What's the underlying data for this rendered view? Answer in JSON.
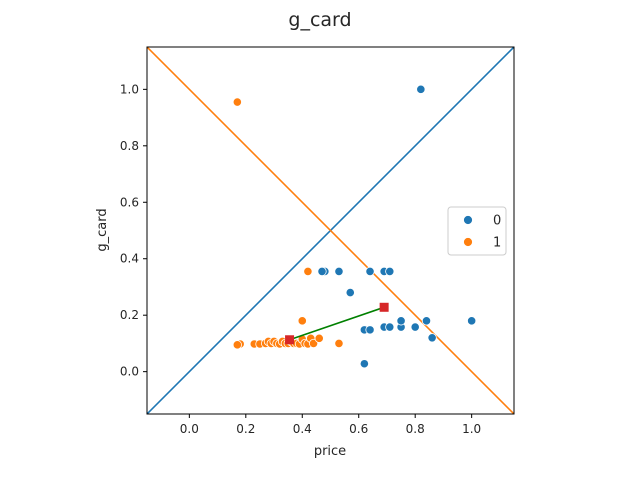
{
  "chart_data": {
    "type": "scatter",
    "title": "g_card",
    "xlabel": "price",
    "ylabel": "g_card",
    "xlim": [
      -0.15,
      1.15
    ],
    "ylim": [
      -0.15,
      1.15
    ],
    "xticks": [
      "0.0",
      "0.2",
      "0.4",
      "0.6",
      "0.8",
      "1.0"
    ],
    "yticks": [
      "0.0",
      "0.2",
      "0.4",
      "0.6",
      "0.8",
      "1.0"
    ],
    "grid": false,
    "legend_position": "center-right",
    "colors": {
      "series0": "#1f77b4",
      "series1": "#ff7f0e",
      "centroid": "#d62728",
      "link": "#008000"
    },
    "series": [
      {
        "name": "0",
        "points": [
          [
            0.82,
            1.0
          ],
          [
            0.48,
            0.355
          ],
          [
            0.47,
            0.355
          ],
          [
            0.53,
            0.355
          ],
          [
            0.64,
            0.355
          ],
          [
            0.69,
            0.355
          ],
          [
            0.71,
            0.355
          ],
          [
            0.57,
            0.28
          ],
          [
            0.62,
            0.148
          ],
          [
            0.64,
            0.148
          ],
          [
            0.69,
            0.158
          ],
          [
            0.71,
            0.158
          ],
          [
            0.75,
            0.158
          ],
          [
            0.75,
            0.18
          ],
          [
            0.8,
            0.158
          ],
          [
            0.84,
            0.18
          ],
          [
            0.86,
            0.12
          ],
          [
            1.0,
            0.18
          ],
          [
            0.62,
            0.028
          ]
        ]
      },
      {
        "name": "1",
        "points": [
          [
            0.17,
            0.955
          ],
          [
            0.42,
            0.355
          ],
          [
            0.4,
            0.18
          ],
          [
            0.18,
            0.098
          ],
          [
            0.17,
            0.095
          ],
          [
            0.23,
            0.098
          ],
          [
            0.25,
            0.098
          ],
          [
            0.27,
            0.1
          ],
          [
            0.28,
            0.107
          ],
          [
            0.29,
            0.1
          ],
          [
            0.3,
            0.107
          ],
          [
            0.31,
            0.1
          ],
          [
            0.32,
            0.098
          ],
          [
            0.33,
            0.107
          ],
          [
            0.34,
            0.1
          ],
          [
            0.35,
            0.1
          ],
          [
            0.36,
            0.107
          ],
          [
            0.37,
            0.1
          ],
          [
            0.38,
            0.1
          ],
          [
            0.39,
            0.098
          ],
          [
            0.4,
            0.115
          ],
          [
            0.41,
            0.1
          ],
          [
            0.42,
            0.098
          ],
          [
            0.43,
            0.118
          ],
          [
            0.44,
            0.1
          ],
          [
            0.46,
            0.118
          ],
          [
            0.53,
            0.1
          ]
        ]
      }
    ],
    "centroids": [
      [
        0.355,
        0.113
      ],
      [
        0.69,
        0.228
      ]
    ],
    "lines": [
      {
        "from": [
          -0.15,
          -0.15
        ],
        "to": [
          1.15,
          1.15
        ],
        "color": "#1f77b4"
      },
      {
        "from": [
          -0.15,
          1.15
        ],
        "to": [
          1.15,
          -0.15
        ],
        "color": "#ff7f0e"
      }
    ]
  }
}
